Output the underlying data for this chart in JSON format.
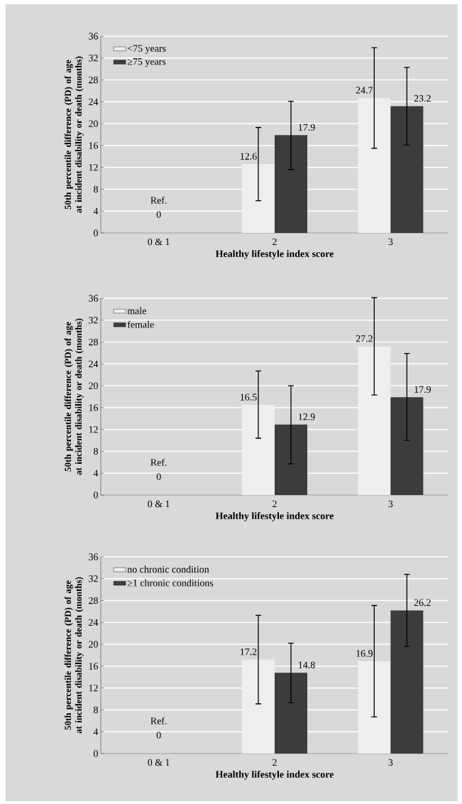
{
  "chart_data": [
    {
      "type": "bar",
      "categories": [
        "0 & 1",
        "2",
        "3"
      ],
      "xlabel": "Healthy lifestyle index score",
      "ylabel": "50th percentile difference (PD) of age at incident disability or death (months)",
      "ylim": [
        0,
        36
      ],
      "yticks": [
        0,
        4,
        8,
        12,
        16,
        20,
        24,
        28,
        32,
        36
      ],
      "grid": "y",
      "legend": "top left",
      "series": [
        {
          "name": "<75 years",
          "color": "#eeeeee",
          "values": [
            0,
            12.6,
            24.7
          ],
          "errors": [
            null,
            [
              5.9,
              19.3
            ],
            [
              15.5,
              33.9
            ]
          ],
          "value_labels": [
            null,
            "12.6",
            "24.7"
          ]
        },
        {
          "name": "≥75 years",
          "color": "#3c3c3c",
          "values": [
            0,
            17.9,
            23.2
          ],
          "errors": [
            null,
            [
              11.6,
              24.1
            ],
            [
              16.1,
              30.3
            ]
          ],
          "value_labels": [
            null,
            "17.9",
            "23.2"
          ]
        }
      ],
      "annotations": [
        {
          "text": "Ref.",
          "x": "0 & 1",
          "y": 0
        },
        {
          "text": "0",
          "x": "0 & 1",
          "y": 0
        }
      ]
    },
    {
      "type": "bar",
      "categories": [
        "0 & 1",
        "2",
        "3"
      ],
      "xlabel": "Healthy lifestyle index score",
      "ylabel": "50th percentile difference (PD) of age at incident disability or death (months)",
      "ylim": [
        0,
        36
      ],
      "yticks": [
        0,
        4,
        8,
        12,
        16,
        20,
        24,
        28,
        32,
        36
      ],
      "grid": "y",
      "legend": "top left",
      "series": [
        {
          "name": "male",
          "color": "#eeeeee",
          "values": [
            0,
            16.5,
            27.2
          ],
          "errors": [
            null,
            [
              10.4,
              22.7
            ],
            [
              18.3,
              36.1
            ]
          ],
          "value_labels": [
            null,
            "16.5",
            "27.2"
          ]
        },
        {
          "name": "female",
          "color": "#3c3c3c",
          "values": [
            0,
            12.9,
            17.9
          ],
          "errors": [
            null,
            [
              5.7,
              20.0
            ],
            [
              10.0,
              25.9
            ]
          ],
          "value_labels": [
            null,
            "12.9",
            "17.9"
          ]
        }
      ],
      "annotations": [
        {
          "text": "Ref.",
          "x": "0 & 1",
          "y": 0
        },
        {
          "text": "0",
          "x": "0 & 1",
          "y": 0
        }
      ]
    },
    {
      "type": "bar",
      "categories": [
        "0 & 1",
        "2",
        "3"
      ],
      "xlabel": "Healthy lifestyle index score",
      "ylabel": "50th percentile difference (PD) of age at incident disability or death (months)",
      "ylim": [
        0,
        36
      ],
      "yticks": [
        0,
        4,
        8,
        12,
        16,
        20,
        24,
        28,
        32,
        36
      ],
      "grid": "y",
      "legend": "top left",
      "series": [
        {
          "name": "no chronic condition",
          "color": "#eeeeee",
          "values": [
            0,
            17.2,
            16.9
          ],
          "errors": [
            null,
            [
              9.1,
              25.3
            ],
            [
              6.7,
              27.1
            ]
          ],
          "value_labels": [
            null,
            "17.2",
            "16.9"
          ]
        },
        {
          "name": "≥1 chronic conditions",
          "color": "#3c3c3c",
          "values": [
            0,
            14.8,
            26.2
          ],
          "errors": [
            null,
            [
              9.3,
              20.2
            ],
            [
              19.6,
              32.8
            ]
          ],
          "value_labels": [
            null,
            "14.8",
            "26.2"
          ]
        }
      ],
      "annotations": [
        {
          "text": "Ref.",
          "x": "0 & 1",
          "y": 0
        },
        {
          "text": "0",
          "x": "0 & 1",
          "y": 0
        }
      ]
    }
  ]
}
